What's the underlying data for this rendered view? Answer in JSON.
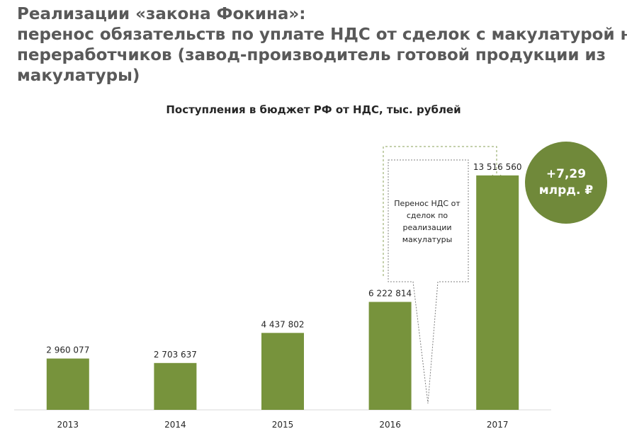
{
  "slide": {
    "title_lines": [
      "Реализации «закона Фокина»:",
      "перенос обязательств по уплате НДС от сделок с макулатурой на",
      "переработчиков (завод-производитель готовой продукции из",
      "макулатуры)"
    ]
  },
  "callout": {
    "lines": [
      "Перенос НДС от",
      "сделок по",
      "реализации",
      "макулатуры"
    ]
  },
  "badge": {
    "lines": [
      "+7,29",
      "млрд. ₽"
    ],
    "color": "#70893a"
  },
  "chart_data": {
    "type": "bar",
    "title": "Поступления в бюджет РФ от НДС, тыс. рублей",
    "categories": [
      "2013",
      "2014",
      "2015",
      "2016",
      "2017"
    ],
    "values": [
      2960077,
      2703637,
      4437802,
      6222814,
      13516560
    ],
    "labels": [
      "2 960 077",
      "2 703 637",
      "4 437 802",
      "6 222 814",
      "13 516 560"
    ],
    "bar_color": "#77933c",
    "xlabel": "",
    "ylabel": "",
    "ylim": [
      0,
      18000000
    ],
    "grid": false,
    "legend": "none"
  }
}
